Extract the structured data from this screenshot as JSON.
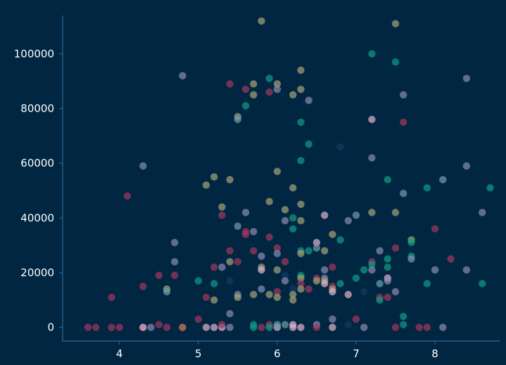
{
  "chart_data": {
    "type": "scatter",
    "title": "",
    "xlabel": "",
    "ylabel": "",
    "xlim": [
      3.28,
      8.82
    ],
    "ylim": [
      -5000,
      114000
    ],
    "x_ticks": [
      4,
      5,
      6,
      7,
      8
    ],
    "y_ticks": [
      0,
      20000,
      40000,
      60000,
      80000,
      100000
    ],
    "grid": false,
    "legend": "none",
    "colors": {
      "background": "#002641",
      "axis": "#2e6a9a",
      "palette": [
        "#a3365e",
        "#0f9c84",
        "#a5a276",
        "#8a8bb2",
        "#e1b2cf",
        "#0e3a63",
        "#6aa0a6",
        "#e27c59"
      ]
    },
    "points": [
      [
        3.6,
        0,
        0
      ],
      [
        3.7,
        0,
        0
      ],
      [
        3.9,
        11000,
        0
      ],
      [
        3.9,
        0,
        0
      ],
      [
        4.0,
        0,
        0
      ],
      [
        4.1,
        48000,
        0
      ],
      [
        4.3,
        15000,
        0
      ],
      [
        4.3,
        0,
        0
      ],
      [
        4.3,
        0,
        4
      ],
      [
        4.3,
        59000,
        3
      ],
      [
        4.4,
        0,
        3
      ],
      [
        4.5,
        19000,
        0
      ],
      [
        4.5,
        1000,
        0
      ],
      [
        4.6,
        0,
        0
      ],
      [
        4.6,
        14000,
        2
      ],
      [
        4.6,
        13000,
        6
      ],
      [
        4.7,
        31000,
        3
      ],
      [
        4.7,
        24000,
        3
      ],
      [
        4.7,
        19000,
        0
      ],
      [
        4.8,
        92000,
        3
      ],
      [
        4.8,
        0,
        7
      ],
      [
        5.0,
        17000,
        1
      ],
      [
        5.0,
        3000,
        0
      ],
      [
        5.1,
        52000,
        2
      ],
      [
        5.1,
        11000,
        0
      ],
      [
        5.1,
        0,
        4
      ],
      [
        5.2,
        55000,
        2
      ],
      [
        5.2,
        22000,
        0
      ],
      [
        5.2,
        16000,
        1
      ],
      [
        5.2,
        10000,
        2
      ],
      [
        5.2,
        0,
        4
      ],
      [
        5.3,
        44000,
        2
      ],
      [
        5.3,
        41000,
        0
      ],
      [
        5.3,
        22000,
        3
      ],
      [
        5.3,
        0,
        4
      ],
      [
        5.3,
        1000,
        0
      ],
      [
        5.4,
        89000,
        0
      ],
      [
        5.4,
        54000,
        2
      ],
      [
        5.4,
        28000,
        0
      ],
      [
        5.4,
        24000,
        2
      ],
      [
        5.4,
        17000,
        5
      ],
      [
        5.4,
        5000,
        3
      ],
      [
        5.4,
        0,
        3
      ],
      [
        5.5,
        77000,
        2
      ],
      [
        5.5,
        76000,
        6
      ],
      [
        5.5,
        37000,
        6
      ],
      [
        5.5,
        24000,
        0
      ],
      [
        5.5,
        12000,
        3
      ],
      [
        5.5,
        11000,
        2
      ],
      [
        5.6,
        87000,
        0
      ],
      [
        5.6,
        81000,
        1
      ],
      [
        5.6,
        42000,
        3
      ],
      [
        5.6,
        35000,
        0
      ],
      [
        5.6,
        34000,
        0
      ],
      [
        5.7,
        89000,
        2
      ],
      [
        5.7,
        85000,
        2
      ],
      [
        5.7,
        35000,
        3
      ],
      [
        5.7,
        28000,
        0
      ],
      [
        5.7,
        12000,
        2
      ],
      [
        5.7,
        1000,
        1
      ],
      [
        5.7,
        0,
        1
      ],
      [
        5.8,
        112000,
        2
      ],
      [
        5.8,
        26000,
        3
      ],
      [
        5.8,
        22000,
        2
      ],
      [
        5.8,
        21000,
        4
      ],
      [
        5.8,
        14000,
        3
      ],
      [
        5.8,
        0,
        0
      ],
      [
        5.9,
        91000,
        1
      ],
      [
        5.9,
        86000,
        0
      ],
      [
        5.9,
        46000,
        2
      ],
      [
        5.9,
        33000,
        0
      ],
      [
        5.9,
        12000,
        2
      ],
      [
        5.9,
        1000,
        0
      ],
      [
        5.9,
        0,
        1
      ],
      [
        6.0,
        89000,
        2
      ],
      [
        6.0,
        87000,
        3
      ],
      [
        6.0,
        57000,
        2
      ],
      [
        6.0,
        29000,
        0
      ],
      [
        6.0,
        27000,
        3
      ],
      [
        6.0,
        21000,
        2
      ],
      [
        6.0,
        13000,
        0
      ],
      [
        6.0,
        11000,
        2
      ],
      [
        6.0,
        0,
        4
      ],
      [
        6.0,
        1000,
        6
      ],
      [
        6.1,
        43000,
        2
      ],
      [
        6.1,
        39000,
        3
      ],
      [
        6.1,
        24000,
        0
      ],
      [
        6.1,
        19000,
        5
      ],
      [
        6.1,
        17000,
        3
      ],
      [
        6.1,
        1000,
        6
      ],
      [
        6.2,
        85000,
        2
      ],
      [
        6.2,
        51000,
        2
      ],
      [
        6.2,
        40000,
        1
      ],
      [
        6.2,
        36000,
        1
      ],
      [
        6.2,
        14000,
        5
      ],
      [
        6.2,
        12000,
        2
      ],
      [
        6.2,
        10000,
        2
      ],
      [
        6.2,
        1000,
        4
      ],
      [
        6.2,
        0,
        4
      ],
      [
        6.3,
        94000,
        2
      ],
      [
        6.3,
        87000,
        2
      ],
      [
        6.3,
        75000,
        1
      ],
      [
        6.3,
        61000,
        1
      ],
      [
        6.3,
        45000,
        2
      ],
      [
        6.3,
        39000,
        2
      ],
      [
        6.3,
        28000,
        1
      ],
      [
        6.3,
        27000,
        2
      ],
      [
        6.3,
        19000,
        1
      ],
      [
        6.3,
        18000,
        2
      ],
      [
        6.3,
        16000,
        0
      ],
      [
        6.3,
        14000,
        2
      ],
      [
        6.3,
        0,
        4
      ],
      [
        6.4,
        83000,
        3
      ],
      [
        6.4,
        67000,
        1
      ],
      [
        6.4,
        28000,
        1
      ],
      [
        6.4,
        14000,
        0
      ],
      [
        6.5,
        31000,
        4
      ],
      [
        6.5,
        29000,
        6
      ],
      [
        6.5,
        18000,
        0
      ],
      [
        6.5,
        17000,
        2
      ],
      [
        6.5,
        1000,
        3
      ],
      [
        6.5,
        0,
        0
      ],
      [
        6.6,
        41000,
        4
      ],
      [
        6.6,
        28000,
        2
      ],
      [
        6.6,
        21000,
        3
      ],
      [
        6.6,
        18000,
        3
      ],
      [
        6.6,
        17000,
        2
      ],
      [
        6.6,
        16000,
        4
      ],
      [
        6.7,
        34000,
        2
      ],
      [
        6.7,
        22000,
        0
      ],
      [
        6.7,
        15000,
        0
      ],
      [
        6.7,
        14000,
        2
      ],
      [
        6.7,
        13000,
        4
      ],
      [
        6.7,
        3000,
        3
      ],
      [
        6.7,
        0,
        4
      ],
      [
        6.8,
        66000,
        5
      ],
      [
        6.8,
        32000,
        1
      ],
      [
        6.8,
        16000,
        1
      ],
      [
        6.9,
        39000,
        3
      ],
      [
        6.9,
        12000,
        4
      ],
      [
        6.9,
        1000,
        5
      ],
      [
        7.0,
        41000,
        6
      ],
      [
        7.0,
        18000,
        1
      ],
      [
        7.0,
        3000,
        0
      ],
      [
        7.1,
        21000,
        1
      ],
      [
        7.1,
        13000,
        5
      ],
      [
        7.1,
        0,
        3
      ],
      [
        7.2,
        100000,
        1
      ],
      [
        7.2,
        76000,
        4
      ],
      [
        7.2,
        62000,
        3
      ],
      [
        7.2,
        42000,
        2
      ],
      [
        7.2,
        24000,
        0
      ],
      [
        7.2,
        23000,
        1
      ],
      [
        7.2,
        21000,
        3
      ],
      [
        7.3,
        28000,
        3
      ],
      [
        7.3,
        16000,
        6
      ],
      [
        7.3,
        11000,
        0
      ],
      [
        7.3,
        10000,
        1
      ],
      [
        7.4,
        54000,
        1
      ],
      [
        7.4,
        25000,
        1
      ],
      [
        7.4,
        22000,
        1
      ],
      [
        7.4,
        18000,
        4
      ],
      [
        7.4,
        17000,
        3
      ],
      [
        7.4,
        11000,
        0
      ],
      [
        7.5,
        111000,
        2
      ],
      [
        7.5,
        97000,
        1
      ],
      [
        7.5,
        42000,
        2
      ],
      [
        7.5,
        29000,
        0
      ],
      [
        7.5,
        13000,
        3
      ],
      [
        7.5,
        0,
        0
      ],
      [
        7.6,
        85000,
        3
      ],
      [
        7.6,
        75000,
        0
      ],
      [
        7.6,
        49000,
        6
      ],
      [
        7.6,
        4000,
        1
      ],
      [
        7.6,
        1000,
        1
      ],
      [
        7.7,
        32000,
        2
      ],
      [
        7.7,
        31000,
        1
      ],
      [
        7.7,
        26000,
        1
      ],
      [
        7.7,
        25000,
        3
      ],
      [
        7.8,
        0,
        0
      ],
      [
        7.9,
        51000,
        1
      ],
      [
        7.9,
        16000,
        1
      ],
      [
        7.9,
        0,
        0
      ],
      [
        8.0,
        36000,
        0
      ],
      [
        8.0,
        21000,
        3
      ],
      [
        8.1,
        54000,
        6
      ],
      [
        8.1,
        0,
        3
      ],
      [
        8.2,
        25000,
        0
      ],
      [
        8.4,
        91000,
        3
      ],
      [
        8.4,
        59000,
        3
      ],
      [
        8.4,
        21000,
        3
      ],
      [
        8.6,
        42000,
        3
      ],
      [
        8.6,
        16000,
        1
      ],
      [
        8.7,
        51000,
        1
      ]
    ]
  }
}
